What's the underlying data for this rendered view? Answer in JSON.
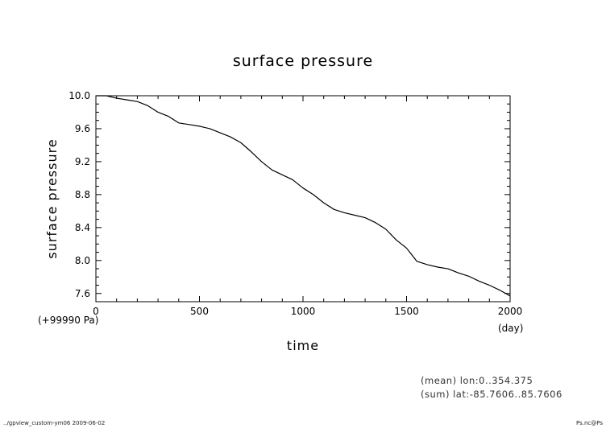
{
  "chart_data": {
    "type": "line",
    "title": "surface pressure",
    "xlabel": "time",
    "ylabel": "surface pressure",
    "x_unit": "(day)",
    "y_unit": "(+99990 Pa)",
    "xlim": [
      0,
      2000
    ],
    "ylim": [
      7.5,
      10.0
    ],
    "x_major_ticks": [
      0,
      500,
      1000,
      1500,
      2000
    ],
    "x_tick_labels": [
      "0",
      "500",
      "1000",
      "1500",
      "2000"
    ],
    "y_major_ticks": [
      7.6,
      8.0,
      8.4,
      8.8,
      9.2,
      9.6,
      10.0
    ],
    "y_tick_labels": [
      "7.6",
      "8.0",
      "8.4",
      "8.8",
      "9.2",
      "9.6",
      "10.0"
    ],
    "grid": false,
    "series": [
      {
        "x": [
          0,
          50,
          100,
          150,
          200,
          250,
          300,
          350,
          400,
          450,
          500,
          550,
          600,
          650,
          700,
          750,
          800,
          850,
          900,
          950,
          1000,
          1050,
          1100,
          1150,
          1200,
          1250,
          1300,
          1350,
          1400,
          1450,
          1500,
          1550,
          1600,
          1650,
          1700,
          1750,
          1800,
          1850,
          1900,
          1950,
          2000
        ],
        "y": [
          10.0,
          10.0,
          9.97,
          9.95,
          9.93,
          9.88,
          9.8,
          9.75,
          9.67,
          9.65,
          9.63,
          9.6,
          9.55,
          9.5,
          9.43,
          9.32,
          9.2,
          9.1,
          9.04,
          8.98,
          8.88,
          8.8,
          8.7,
          8.62,
          8.58,
          8.55,
          8.52,
          8.46,
          8.38,
          8.25,
          8.15,
          7.99,
          7.95,
          7.92,
          7.9,
          7.85,
          7.81,
          7.75,
          7.7,
          7.64,
          7.57
        ]
      }
    ]
  },
  "annotations": {
    "mean": "(mean) lon:0..354.375",
    "sum": "(sum) lat:-85.7606..85.7606"
  },
  "footer": {
    "left": "../gpview_custom-ym06  2009-06-02",
    "right": "Ps.nc@Ps"
  }
}
